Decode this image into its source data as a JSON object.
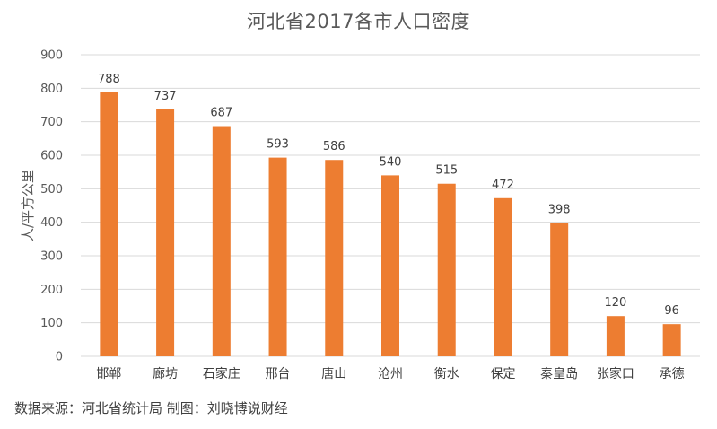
{
  "chart_data": {
    "type": "bar",
    "title": "河北省2017各市人口密度",
    "xlabel": "",
    "ylabel": "人/平方公里",
    "categories": [
      "邯郸",
      "廊坊",
      "石家庄",
      "邢台",
      "唐山",
      "沧州",
      "衡水",
      "保定",
      "秦皇岛",
      "张家口",
      "承德"
    ],
    "values": [
      788,
      737,
      687,
      593,
      586,
      540,
      515,
      472,
      398,
      120,
      96
    ],
    "ylim": [
      0,
      900
    ],
    "yticks": [
      0,
      100,
      200,
      300,
      400,
      500,
      600,
      700,
      800,
      900
    ],
    "grid": true,
    "legend": "none",
    "bar_color": "#ED7D31",
    "grid_color": "#D9D9D9"
  },
  "footer": {
    "source": "数据来源：河北省统计局 制图：刘晓博说财经"
  }
}
